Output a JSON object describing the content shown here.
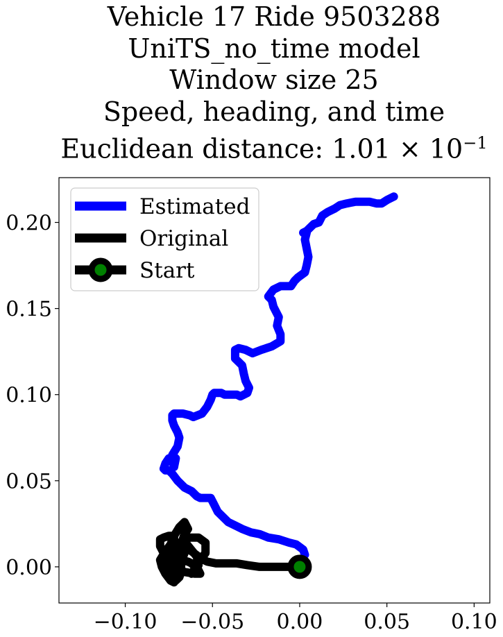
{
  "chart_data": {
    "type": "line",
    "title_lines": [
      "Vehicle 17 Ride 9503288",
      "UniTS_no_time model",
      "Window size 25",
      "Speed, heading, and time"
    ],
    "title_distance_prefix": "Euclidean distance: ",
    "title_distance_value": "1.01 × 10",
    "title_distance_exponent": "−1",
    "xlabel": "",
    "ylabel": "",
    "xlim": [
      -0.138,
      0.109
    ],
    "ylim": [
      -0.021,
      0.226
    ],
    "xticks": [
      -0.1,
      -0.05,
      0.0,
      0.05,
      0.1
    ],
    "xtick_labels": [
      "−0.10",
      "−0.05",
      "0.00",
      "0.05",
      "0.10"
    ],
    "yticks": [
      0.0,
      0.05,
      0.1,
      0.15,
      0.2
    ],
    "ytick_labels": [
      "0.00",
      "0.05",
      "0.10",
      "0.15",
      "0.20"
    ],
    "grid": false,
    "legend_position": "top-left",
    "series": [
      {
        "name": "Estimated",
        "color": "#0000ff",
        "x": [
          0.003,
          0.002,
          -0.002,
          -0.006,
          -0.012,
          -0.018,
          -0.023,
          -0.028,
          -0.033,
          -0.037,
          -0.041,
          -0.044,
          -0.047,
          -0.049,
          -0.051,
          -0.053,
          -0.057,
          -0.059,
          -0.062,
          -0.066,
          -0.07,
          -0.073,
          -0.075,
          -0.077,
          -0.078,
          -0.077,
          -0.075,
          -0.073,
          -0.072,
          -0.071,
          -0.073,
          -0.07,
          -0.069,
          -0.07,
          -0.072,
          -0.073,
          -0.073,
          -0.072,
          -0.067,
          -0.063,
          -0.061,
          -0.056,
          -0.053,
          -0.051,
          -0.05,
          -0.049,
          -0.047,
          -0.045,
          -0.043,
          -0.04,
          -0.036,
          -0.034,
          -0.03,
          -0.029,
          -0.031,
          -0.032,
          -0.033,
          -0.037,
          -0.037,
          -0.035,
          -0.031,
          -0.027,
          -0.022,
          -0.016,
          -0.011,
          -0.011,
          -0.013,
          -0.012,
          -0.015,
          -0.016,
          -0.018,
          -0.015,
          -0.011,
          -0.009,
          -0.005,
          -0.003,
          -0.001,
          0.003,
          0.004,
          0.005,
          0.004,
          0.003,
          0.004,
          0.002,
          0.004,
          0.008,
          0.011,
          0.012,
          0.013,
          0.016,
          0.02,
          0.023,
          0.027,
          0.032,
          0.036,
          0.04,
          0.044,
          0.047,
          0.05,
          0.054
        ],
        "y": [
          0.007,
          0.01,
          0.013,
          0.014,
          0.016,
          0.017,
          0.019,
          0.02,
          0.022,
          0.024,
          0.026,
          0.029,
          0.032,
          0.036,
          0.04,
          0.04,
          0.04,
          0.041,
          0.044,
          0.046,
          0.05,
          0.054,
          0.056,
          0.056,
          0.057,
          0.06,
          0.063,
          0.062,
          0.058,
          0.063,
          0.065,
          0.07,
          0.075,
          0.078,
          0.082,
          0.085,
          0.088,
          0.089,
          0.089,
          0.088,
          0.087,
          0.089,
          0.093,
          0.097,
          0.1,
          0.101,
          0.101,
          0.101,
          0.1,
          0.1,
          0.1,
          0.099,
          0.101,
          0.104,
          0.108,
          0.112,
          0.117,
          0.121,
          0.126,
          0.127,
          0.126,
          0.124,
          0.126,
          0.128,
          0.131,
          0.135,
          0.14,
          0.145,
          0.151,
          0.155,
          0.157,
          0.161,
          0.163,
          0.163,
          0.163,
          0.166,
          0.168,
          0.171,
          0.175,
          0.18,
          0.185,
          0.19,
          0.194,
          0.194,
          0.195,
          0.199,
          0.2,
          0.202,
          0.204,
          0.206,
          0.208,
          0.21,
          0.211,
          0.212,
          0.212,
          0.212,
          0.211,
          0.211,
          0.213,
          0.215
        ]
      },
      {
        "name": "Original",
        "color": "#000000",
        "x": [
          0.0,
          -0.004,
          -0.009,
          -0.016,
          -0.023,
          -0.03,
          -0.036,
          -0.042,
          -0.048,
          -0.053,
          -0.055,
          -0.058,
          -0.062,
          -0.065,
          -0.065,
          -0.058,
          -0.054,
          -0.054,
          -0.057,
          -0.06,
          -0.062,
          -0.06,
          -0.058,
          -0.059,
          -0.063,
          -0.067,
          -0.066,
          -0.064,
          -0.066,
          -0.069,
          -0.072,
          -0.074,
          -0.077,
          -0.08,
          -0.079,
          -0.077,
          -0.074,
          -0.072,
          -0.07,
          -0.073,
          -0.073,
          -0.072,
          -0.07,
          -0.069,
          -0.071,
          -0.068,
          -0.064,
          -0.062,
          -0.06,
          -0.058,
          -0.057,
          -0.06,
          -0.066,
          -0.07,
          -0.072,
          -0.071,
          -0.069,
          -0.068,
          -0.068,
          -0.069,
          -0.071,
          -0.072,
          -0.072,
          -0.075,
          -0.078,
          -0.08,
          -0.08,
          -0.078,
          -0.076,
          -0.075,
          -0.075,
          -0.073,
          -0.072,
          -0.07,
          -0.068,
          -0.067,
          -0.066,
          -0.066,
          -0.068
        ],
        "y": [
          0.0,
          0.0,
          0.0,
          0.0,
          0.0,
          0.001,
          0.002,
          0.002,
          0.002,
          0.003,
          0.004,
          0.006,
          0.009,
          0.013,
          0.017,
          0.017,
          0.014,
          0.008,
          0.004,
          -0.001,
          -0.004,
          -0.003,
          0.001,
          0.006,
          0.011,
          0.016,
          0.019,
          0.022,
          0.026,
          0.023,
          0.018,
          0.013,
          0.009,
          0.004,
          0.0,
          -0.004,
          -0.008,
          -0.009,
          -0.004,
          0.002,
          0.008,
          0.012,
          0.014,
          0.011,
          0.007,
          0.004,
          0.003,
          0.002,
          0.0,
          -0.002,
          -0.004,
          -0.004,
          -0.003,
          -0.001,
          -0.005,
          -0.008,
          -0.006,
          -0.003,
          0.002,
          0.006,
          0.012,
          0.016,
          0.018,
          0.018,
          0.017,
          0.016,
          0.012,
          0.008,
          0.004,
          0.0,
          -0.003,
          -0.006,
          -0.004,
          0.001,
          0.006,
          0.01,
          0.012,
          0.008,
          0.003
        ]
      }
    ],
    "start": {
      "name": "Start",
      "x": 0.0,
      "y": 0.0,
      "color": "#000000",
      "fill": "#008000"
    },
    "colors": {
      "estimated": "#0000ff",
      "original": "#000000",
      "start_fill": "#008000"
    }
  }
}
